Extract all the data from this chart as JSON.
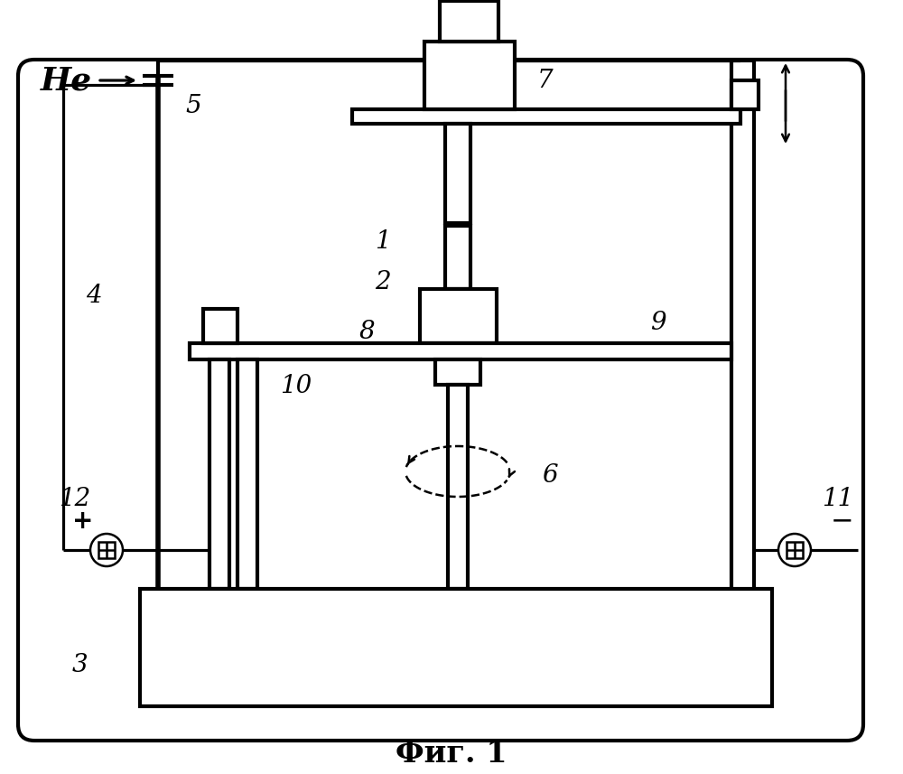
{
  "title": "Фиг. 1",
  "bg_color": "#ffffff",
  "line_color": "#000000",
  "lw": 1.8,
  "tlw": 3.0,
  "fig_width": 10.0,
  "fig_height": 8.57
}
